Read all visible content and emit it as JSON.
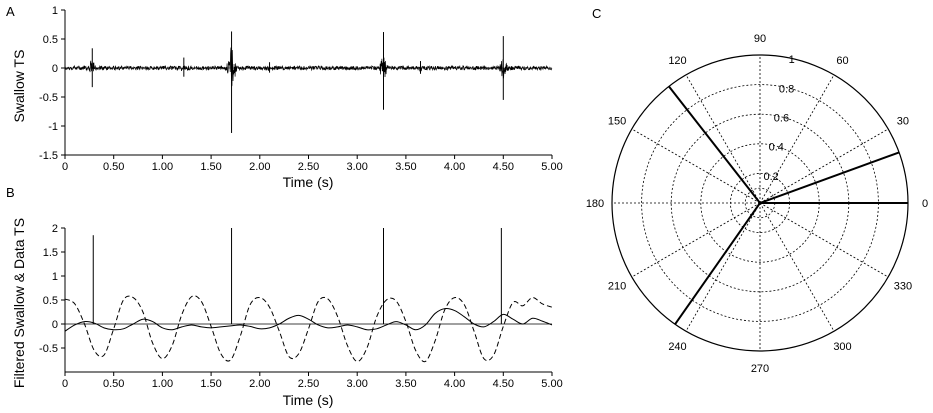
{
  "chart_data": [
    {
      "panel": "A",
      "type": "line",
      "xlabel": "Time (s)",
      "ylabel": "Swallow TS",
      "xlim": [
        0,
        5.0
      ],
      "ylim": [
        -1.5,
        1.0
      ],
      "xticks": [
        "0",
        "0.50",
        "1.00",
        "1.50",
        "2.00",
        "2.50",
        "3.00",
        "3.50",
        "4.00",
        "4.50",
        "5.00"
      ],
      "yticks": [
        "-1.5",
        "-1",
        "-0.5",
        "0",
        "0.5",
        "1"
      ],
      "grid": false,
      "legend": "none",
      "bursts": [
        {
          "t": 0.28,
          "max": 0.34,
          "min": -0.33
        },
        {
          "t": 1.22,
          "max": 0.18,
          "min": -0.15
        },
        {
          "t": 1.71,
          "max": 0.63,
          "min": -1.12
        },
        {
          "t": 2.1,
          "max": 0.1,
          "min": -0.08
        },
        {
          "t": 3.27,
          "max": 0.62,
          "min": -0.72
        },
        {
          "t": 3.65,
          "max": 0.12,
          "min": -0.1
        },
        {
          "t": 4.5,
          "max": 0.55,
          "min": -0.55
        }
      ]
    },
    {
      "panel": "B",
      "type": "line",
      "xlabel": "Time (s)",
      "ylabel": "Filtered Swallow & Data TS",
      "xlim": [
        0,
        5.0
      ],
      "ylim": [
        -1.0,
        2.0
      ],
      "xticks": [
        "0",
        "0.50",
        "1.00",
        "1.50",
        "2.00",
        "2.50",
        "3.00",
        "3.50",
        "4.00",
        "4.50",
        "5.00"
      ],
      "yticks": [
        "-0.5",
        "0",
        "0.5",
        "1",
        "1.5",
        "2"
      ],
      "grid": false,
      "legend": "none",
      "spikes": [
        {
          "t": 0.29,
          "height": 1.85
        },
        {
          "t": 1.71,
          "height": 2.0
        },
        {
          "t": 3.27,
          "height": 2.0
        },
        {
          "t": 4.48,
          "height": 2.0
        }
      ],
      "series": [
        {
          "style": "dashed",
          "x": [
            0,
            0.1,
            0.2,
            0.3,
            0.4,
            0.5,
            0.6,
            0.7,
            0.8,
            0.9,
            1.0,
            1.1,
            1.2,
            1.3,
            1.4,
            1.5,
            1.6,
            1.7,
            1.8,
            1.9,
            2.0,
            2.1,
            2.2,
            2.3,
            2.4,
            2.5,
            2.6,
            2.7,
            2.8,
            2.9,
            3.0,
            3.1,
            3.2,
            3.3,
            3.4,
            3.5,
            3.6,
            3.7,
            3.8,
            3.9,
            4.0,
            4.1,
            4.2,
            4.3,
            4.4,
            4.5,
            4.6,
            4.7,
            4.8,
            4.9,
            5.0
          ],
          "y": [
            0.52,
            0.42,
            0.0,
            -0.55,
            -0.65,
            -0.1,
            0.5,
            0.55,
            0.25,
            -0.4,
            -0.72,
            -0.45,
            0.2,
            0.57,
            0.47,
            -0.05,
            -0.62,
            -0.75,
            -0.25,
            0.4,
            0.55,
            0.35,
            -0.15,
            -0.68,
            -0.62,
            -0.1,
            0.47,
            0.52,
            0.15,
            -0.45,
            -0.78,
            -0.5,
            0.15,
            0.5,
            0.48,
            0.05,
            -0.55,
            -0.78,
            -0.35,
            0.3,
            0.55,
            0.4,
            -0.15,
            -0.72,
            -0.65,
            -0.05,
            0.45,
            0.38,
            0.55,
            0.42,
            0.35
          ]
        },
        {
          "style": "solid",
          "x": [
            0,
            0.1,
            0.2,
            0.3,
            0.4,
            0.5,
            0.6,
            0.7,
            0.8,
            0.9,
            1.0,
            1.1,
            1.2,
            1.3,
            1.4,
            1.5,
            1.6,
            1.7,
            1.8,
            1.9,
            2.0,
            2.1,
            2.2,
            2.3,
            2.4,
            2.5,
            2.6,
            2.7,
            2.8,
            2.9,
            3.0,
            3.1,
            3.2,
            3.3,
            3.4,
            3.5,
            3.6,
            3.7,
            3.8,
            3.9,
            4.0,
            4.1,
            4.2,
            4.3,
            4.4,
            4.5,
            4.6,
            4.7,
            4.8,
            4.9,
            5.0
          ],
          "y": [
            -0.15,
            -0.02,
            0.05,
            0.02,
            -0.08,
            -0.12,
            -0.1,
            0.0,
            0.1,
            0.05,
            -0.08,
            -0.12,
            -0.06,
            -0.02,
            -0.06,
            -0.08,
            -0.06,
            -0.04,
            -0.02,
            -0.05,
            -0.1,
            -0.08,
            0.0,
            0.12,
            0.18,
            0.1,
            -0.02,
            -0.08,
            -0.06,
            -0.02,
            -0.06,
            -0.12,
            -0.1,
            -0.02,
            0.05,
            -0.02,
            -0.12,
            -0.02,
            0.22,
            0.32,
            0.28,
            0.15,
            0.0,
            -0.06,
            0.05,
            0.2,
            0.1,
            0.0,
            0.12,
            0.06,
            -0.02
          ]
        }
      ]
    },
    {
      "panel": "C",
      "type": "polar",
      "rmax": 1,
      "rticks": [
        "0.2",
        "0.4",
        "0.6",
        "0.8",
        "1"
      ],
      "angle_ticks": [
        "0",
        "30",
        "60",
        "90",
        "120",
        "150",
        "180",
        "210",
        "240",
        "270",
        "300",
        "330"
      ],
      "grid": true,
      "legend": "none",
      "vectors": [
        {
          "angle": 0,
          "r": 1.0
        },
        {
          "angle": 20,
          "r": 1.0
        },
        {
          "angle": 128,
          "r": 1.0
        },
        {
          "angle": 235,
          "r": 1.0
        }
      ]
    }
  ]
}
